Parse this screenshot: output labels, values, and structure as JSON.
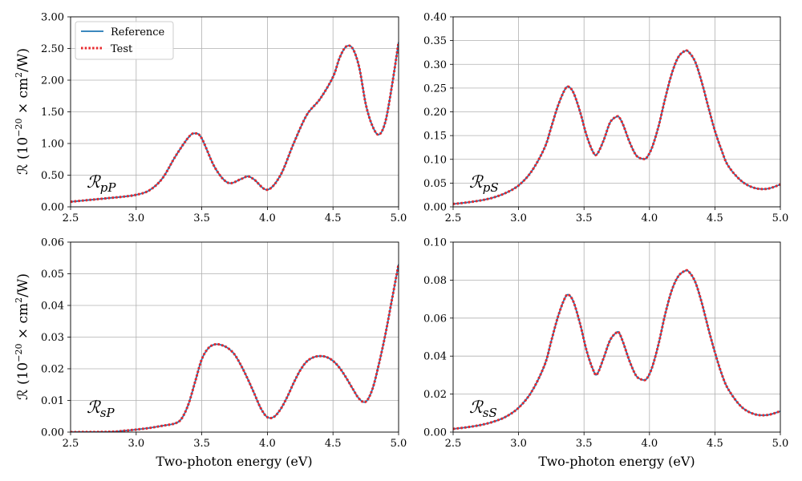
{
  "figure": {
    "ylabel_main": "ℛ (10",
    "ylabel_exp": "−20",
    "ylabel_rest": " × cm",
    "ylabel_exp2": "2",
    "ylabel_end": "/W)",
    "xlabel": "Two-photon energy (eV)"
  },
  "legend": {
    "items": [
      {
        "label": "Reference",
        "color": "#1f77b4",
        "style": "solid"
      },
      {
        "label": "Test",
        "color": "#e8282d",
        "style": "dotted"
      }
    ]
  },
  "chart_data": [
    {
      "type": "line",
      "annotation": {
        "main": "ℛ",
        "sub": "pP"
      },
      "xlim": [
        2.5,
        5.0
      ],
      "ylim": [
        0,
        3.0
      ],
      "xticks": [
        "2.5",
        "3.0",
        "3.5",
        "4.0",
        "4.5",
        "5.0"
      ],
      "yticks": [
        "0.00",
        "0.50",
        "1.00",
        "1.50",
        "2.00",
        "2.50",
        "3.00"
      ],
      "grid": true,
      "legend": "top-left",
      "series": [
        {
          "name": "Reference",
          "x": [
            2.5,
            2.6,
            2.7,
            2.8,
            2.9,
            3.0,
            3.1,
            3.2,
            3.3,
            3.4,
            3.45,
            3.5,
            3.6,
            3.7,
            3.8,
            3.85,
            3.9,
            4.0,
            4.1,
            4.2,
            4.3,
            4.4,
            4.5,
            4.55,
            4.6,
            4.65,
            4.7,
            4.75,
            4.8,
            4.85,
            4.9,
            4.95,
            5.0
          ],
          "y": [
            0.08,
            0.1,
            0.12,
            0.14,
            0.16,
            0.19,
            0.26,
            0.45,
            0.8,
            1.1,
            1.16,
            1.08,
            0.62,
            0.38,
            0.44,
            0.48,
            0.43,
            0.27,
            0.5,
            1.0,
            1.45,
            1.7,
            2.05,
            2.35,
            2.53,
            2.5,
            2.2,
            1.62,
            1.28,
            1.14,
            1.35,
            1.92,
            2.6
          ]
        },
        {
          "name": "Test",
          "x": [
            2.5,
            2.6,
            2.7,
            2.8,
            2.9,
            3.0,
            3.1,
            3.2,
            3.3,
            3.4,
            3.45,
            3.5,
            3.6,
            3.7,
            3.8,
            3.85,
            3.9,
            4.0,
            4.1,
            4.2,
            4.3,
            4.4,
            4.5,
            4.55,
            4.6,
            4.65,
            4.7,
            4.75,
            4.8,
            4.85,
            4.9,
            4.95,
            5.0
          ],
          "y": [
            0.08,
            0.1,
            0.12,
            0.14,
            0.16,
            0.19,
            0.26,
            0.45,
            0.8,
            1.1,
            1.16,
            1.08,
            0.62,
            0.38,
            0.44,
            0.48,
            0.43,
            0.27,
            0.5,
            1.0,
            1.45,
            1.7,
            2.05,
            2.35,
            2.53,
            2.5,
            2.2,
            1.62,
            1.28,
            1.14,
            1.35,
            1.92,
            2.6
          ]
        }
      ]
    },
    {
      "type": "line",
      "annotation": {
        "main": "ℛ",
        "sub": "pS"
      },
      "xlim": [
        2.5,
        5.0
      ],
      "ylim": [
        0,
        0.4
      ],
      "xticks": [
        "2.5",
        "3.0",
        "3.5",
        "4.0",
        "4.5",
        "5.0"
      ],
      "yticks": [
        "0.00",
        "0.05",
        "0.10",
        "0.15",
        "0.20",
        "0.25",
        "0.30",
        "0.35",
        "0.40"
      ],
      "grid": true,
      "series": [
        {
          "name": "Reference",
          "x": [
            2.5,
            2.6,
            2.7,
            2.8,
            2.9,
            3.0,
            3.1,
            3.2,
            3.25,
            3.3,
            3.35,
            3.38,
            3.42,
            3.47,
            3.52,
            3.57,
            3.6,
            3.65,
            3.7,
            3.75,
            3.77,
            3.8,
            3.85,
            3.9,
            3.95,
            3.98,
            4.02,
            4.07,
            4.12,
            4.17,
            4.22,
            4.27,
            4.3,
            4.35,
            4.4,
            4.45,
            4.5,
            4.55,
            4.6,
            4.7,
            4.8,
            4.9,
            5.0
          ],
          "y": [
            0.006,
            0.009,
            0.013,
            0.019,
            0.029,
            0.045,
            0.075,
            0.125,
            0.168,
            0.212,
            0.245,
            0.253,
            0.24,
            0.2,
            0.15,
            0.115,
            0.111,
            0.14,
            0.178,
            0.19,
            0.188,
            0.172,
            0.135,
            0.108,
            0.101,
            0.104,
            0.125,
            0.17,
            0.228,
            0.28,
            0.315,
            0.328,
            0.326,
            0.305,
            0.262,
            0.21,
            0.16,
            0.12,
            0.087,
            0.055,
            0.04,
            0.038,
            0.047
          ]
        },
        {
          "name": "Test",
          "x": [
            2.5,
            2.6,
            2.7,
            2.8,
            2.9,
            3.0,
            3.1,
            3.2,
            3.25,
            3.3,
            3.35,
            3.38,
            3.42,
            3.47,
            3.52,
            3.57,
            3.6,
            3.65,
            3.7,
            3.75,
            3.77,
            3.8,
            3.85,
            3.9,
            3.95,
            3.98,
            4.02,
            4.07,
            4.12,
            4.17,
            4.22,
            4.27,
            4.3,
            4.35,
            4.4,
            4.45,
            4.5,
            4.55,
            4.6,
            4.7,
            4.8,
            4.9,
            5.0
          ],
          "y": [
            0.006,
            0.009,
            0.013,
            0.019,
            0.029,
            0.045,
            0.075,
            0.125,
            0.168,
            0.212,
            0.245,
            0.253,
            0.24,
            0.2,
            0.15,
            0.115,
            0.111,
            0.14,
            0.178,
            0.19,
            0.188,
            0.172,
            0.135,
            0.108,
            0.101,
            0.104,
            0.125,
            0.17,
            0.228,
            0.28,
            0.315,
            0.328,
            0.326,
            0.305,
            0.262,
            0.21,
            0.16,
            0.12,
            0.087,
            0.055,
            0.04,
            0.038,
            0.047
          ]
        }
      ]
    },
    {
      "type": "line",
      "annotation": {
        "main": "ℛ",
        "sub": "sP"
      },
      "xlim": [
        2.5,
        5.0
      ],
      "ylim": [
        0,
        0.06
      ],
      "xticks": [
        "2.5",
        "3.0",
        "3.5",
        "4.0",
        "4.5",
        "5.0"
      ],
      "yticks": [
        "0.00",
        "0.01",
        "0.02",
        "0.03",
        "0.04",
        "0.05",
        "0.06"
      ],
      "grid": true,
      "series": [
        {
          "name": "Reference",
          "x": [
            2.5,
            2.8,
            2.9,
            3.0,
            3.1,
            3.2,
            3.3,
            3.35,
            3.4,
            3.45,
            3.5,
            3.55,
            3.6,
            3.65,
            3.7,
            3.75,
            3.8,
            3.85,
            3.9,
            3.95,
            4.0,
            4.05,
            4.1,
            4.15,
            4.2,
            4.25,
            4.3,
            4.35,
            4.4,
            4.45,
            4.5,
            4.55,
            4.6,
            4.65,
            4.7,
            4.75,
            4.8,
            4.85,
            4.9,
            4.95,
            5.0
          ],
          "y": [
            0.0,
            0.0001,
            0.0004,
            0.0008,
            0.0013,
            0.002,
            0.0028,
            0.0045,
            0.009,
            0.016,
            0.023,
            0.0265,
            0.0277,
            0.0275,
            0.0265,
            0.0245,
            0.021,
            0.0168,
            0.0122,
            0.0075,
            0.0047,
            0.0048,
            0.0072,
            0.011,
            0.0155,
            0.0195,
            0.0223,
            0.0236,
            0.024,
            0.0237,
            0.0225,
            0.0203,
            0.0172,
            0.0137,
            0.0105,
            0.0096,
            0.0135,
            0.0215,
            0.031,
            0.042,
            0.053
          ]
        },
        {
          "name": "Test",
          "x": [
            2.5,
            2.8,
            2.9,
            3.0,
            3.1,
            3.2,
            3.3,
            3.35,
            3.4,
            3.45,
            3.5,
            3.55,
            3.6,
            3.65,
            3.7,
            3.75,
            3.8,
            3.85,
            3.9,
            3.95,
            4.0,
            4.05,
            4.1,
            4.15,
            4.2,
            4.25,
            4.3,
            4.35,
            4.4,
            4.45,
            4.5,
            4.55,
            4.6,
            4.65,
            4.7,
            4.75,
            4.8,
            4.85,
            4.9,
            4.95,
            5.0
          ],
          "y": [
            0.0,
            0.0001,
            0.0004,
            0.0008,
            0.0013,
            0.002,
            0.0028,
            0.0045,
            0.009,
            0.016,
            0.023,
            0.0265,
            0.0277,
            0.0275,
            0.0265,
            0.0245,
            0.021,
            0.0168,
            0.0122,
            0.0075,
            0.0047,
            0.0048,
            0.0072,
            0.011,
            0.0155,
            0.0195,
            0.0223,
            0.0236,
            0.024,
            0.0237,
            0.0225,
            0.0203,
            0.0172,
            0.0137,
            0.0105,
            0.0096,
            0.0135,
            0.0215,
            0.031,
            0.042,
            0.053
          ]
        }
      ]
    },
    {
      "type": "line",
      "annotation": {
        "main": "ℛ",
        "sub": "sS"
      },
      "xlim": [
        2.5,
        5.0
      ],
      "ylim": [
        0,
        0.1
      ],
      "xticks": [
        "2.5",
        "3.0",
        "3.5",
        "4.0",
        "4.5",
        "5.0"
      ],
      "yticks": [
        "0.00",
        "0.02",
        "0.04",
        "0.06",
        "0.08",
        "0.10"
      ],
      "grid": true,
      "series": [
        {
          "name": "Reference",
          "x": [
            2.5,
            2.6,
            2.7,
            2.8,
            2.9,
            3.0,
            3.1,
            3.2,
            3.25,
            3.3,
            3.35,
            3.38,
            3.42,
            3.47,
            3.52,
            3.57,
            3.6,
            3.65,
            3.7,
            3.75,
            3.77,
            3.8,
            3.85,
            3.9,
            3.95,
            3.98,
            4.02,
            4.07,
            4.12,
            4.17,
            4.22,
            4.27,
            4.3,
            4.35,
            4.4,
            4.45,
            4.5,
            4.55,
            4.6,
            4.7,
            4.8,
            4.9,
            5.0
          ],
          "y": [
            0.0017,
            0.0025,
            0.0036,
            0.0053,
            0.008,
            0.0128,
            0.0213,
            0.0355,
            0.048,
            0.0605,
            0.07,
            0.0723,
            0.0685,
            0.057,
            0.0428,
            0.0327,
            0.0305,
            0.039,
            0.0485,
            0.0525,
            0.052,
            0.047,
            0.037,
            0.0295,
            0.0275,
            0.0282,
            0.034,
            0.0465,
            0.062,
            0.0745,
            0.082,
            0.0848,
            0.0845,
            0.079,
            0.068,
            0.0545,
            0.042,
            0.031,
            0.0228,
            0.0135,
            0.0095,
            0.009,
            0.011
          ]
        },
        {
          "name": "Test",
          "x": [
            2.5,
            2.6,
            2.7,
            2.8,
            2.9,
            3.0,
            3.1,
            3.2,
            3.25,
            3.3,
            3.35,
            3.38,
            3.42,
            3.47,
            3.52,
            3.57,
            3.6,
            3.65,
            3.7,
            3.75,
            3.77,
            3.8,
            3.85,
            3.9,
            3.95,
            3.98,
            4.02,
            4.07,
            4.12,
            4.17,
            4.22,
            4.27,
            4.3,
            4.35,
            4.4,
            4.45,
            4.5,
            4.55,
            4.6,
            4.7,
            4.8,
            4.9,
            5.0
          ],
          "y": [
            0.0017,
            0.0025,
            0.0036,
            0.0053,
            0.008,
            0.0128,
            0.0213,
            0.0355,
            0.048,
            0.0605,
            0.07,
            0.0723,
            0.0685,
            0.057,
            0.0428,
            0.0327,
            0.0305,
            0.039,
            0.0485,
            0.0525,
            0.052,
            0.047,
            0.037,
            0.0295,
            0.0275,
            0.0282,
            0.034,
            0.0465,
            0.062,
            0.0745,
            0.082,
            0.0848,
            0.0845,
            0.079,
            0.068,
            0.0545,
            0.042,
            0.031,
            0.0228,
            0.0135,
            0.0095,
            0.009,
            0.011
          ]
        }
      ]
    }
  ]
}
